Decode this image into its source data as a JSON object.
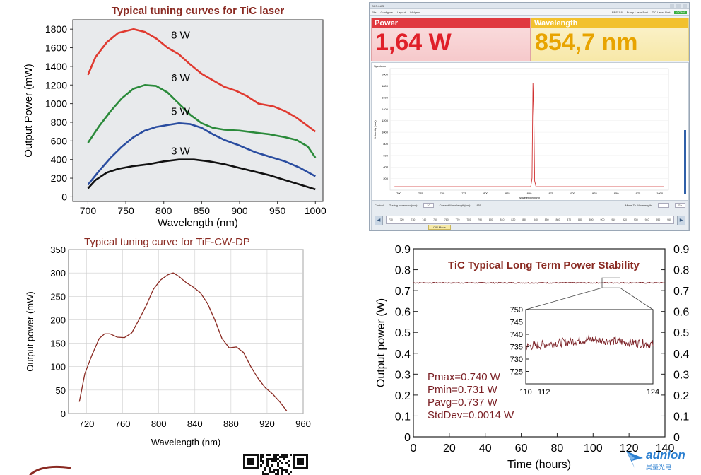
{
  "panel1": {
    "chart_data": {
      "type": "line",
      "title": "Typical tuning curves for TiC laser",
      "xlabel": "Wavelength (nm)",
      "ylabel": "Output Power (mW)",
      "xlim": [
        680,
        1010
      ],
      "ylim": [
        -50,
        1900
      ],
      "xticks": [
        700,
        750,
        800,
        850,
        900,
        950,
        1000
      ],
      "yticks": [
        0,
        200,
        400,
        600,
        800,
        1000,
        1200,
        1400,
        1600,
        1800
      ],
      "series": [
        {
          "name": "8 W",
          "color": "#e03a30",
          "label_at": [
            805,
            1700
          ],
          "x": [
            700,
            710,
            725,
            740,
            760,
            775,
            790,
            805,
            820,
            835,
            850,
            865,
            880,
            895,
            910,
            925,
            945,
            960,
            975,
            990,
            1000
          ],
          "y": [
            1310,
            1500,
            1660,
            1760,
            1800,
            1770,
            1700,
            1600,
            1530,
            1420,
            1320,
            1250,
            1180,
            1140,
            1080,
            1000,
            970,
            920,
            850,
            760,
            700
          ]
        },
        {
          "name": "6 W",
          "color": "#2a8a3a",
          "label_at": [
            805,
            1240
          ],
          "x": [
            700,
            715,
            730,
            745,
            760,
            775,
            790,
            805,
            820,
            835,
            850,
            865,
            880,
            900,
            920,
            940,
            960,
            975,
            990,
            1000
          ],
          "y": [
            580,
            760,
            920,
            1060,
            1160,
            1200,
            1190,
            1120,
            1000,
            880,
            790,
            740,
            720,
            710,
            690,
            670,
            640,
            610,
            540,
            420
          ]
        },
        {
          "name": "5 W",
          "color": "#2a4da0",
          "label_at": [
            805,
            880
          ],
          "x": [
            700,
            715,
            730,
            745,
            760,
            775,
            790,
            805,
            820,
            835,
            850,
            865,
            880,
            900,
            920,
            940,
            960,
            980,
            1000
          ],
          "y": [
            130,
            280,
            420,
            540,
            640,
            710,
            750,
            770,
            790,
            780,
            740,
            670,
            610,
            550,
            480,
            430,
            380,
            310,
            220
          ]
        },
        {
          "name": "3 W",
          "color": "#111111",
          "label_at": [
            805,
            455
          ],
          "x": [
            700,
            710,
            725,
            740,
            760,
            780,
            800,
            820,
            840,
            860,
            880,
            900,
            920,
            940,
            960,
            980,
            1000
          ],
          "y": [
            90,
            180,
            260,
            300,
            330,
            350,
            380,
            400,
            400,
            380,
            350,
            310,
            270,
            230,
            180,
            130,
            80
          ]
        }
      ]
    }
  },
  "panel2": {
    "app": {
      "title": "SCS-LAS",
      "menu": [
        "File",
        "Configure",
        "Layout",
        "Widgets"
      ],
      "status_labels": [
        "RPS 1.8",
        "Pump Laser Port",
        "TiC Laser Port"
      ],
      "status_ok": "COM4"
    },
    "power": {
      "label": "Power",
      "value": "1,64 W"
    },
    "wavelength": {
      "label": "Wavelength",
      "value": "854,7 nm"
    },
    "spectrum": {
      "chart_data": {
        "type": "line",
        "title": "Spectrum",
        "xlabel": "Wavelength (nm)",
        "ylabel": "Intensity (a.u.)",
        "xlim": [
          690,
          1010
        ],
        "ylim": [
          0,
          2100
        ],
        "xticks": [
          700,
          750,
          800,
          850,
          900,
          950,
          1000
        ],
        "xtick_labels_minor": [
          "700",
          "725",
          "750",
          "775",
          "800",
          "825",
          "850",
          "875",
          "900",
          "925",
          "950",
          "975",
          "1000"
        ],
        "yticks": [
          200,
          400,
          600,
          800,
          1000,
          1200,
          1400,
          1600,
          1800,
          2000
        ],
        "peak_wavelength": 854.7,
        "peak_intensity": 1850,
        "baseline": 60
      }
    },
    "control": {
      "header": "Control",
      "tuning_label": "Tuning Increment(nm):",
      "tuning_value": "10",
      "current_label": "Current Wavelength(nm):",
      "current_value": "855",
      "move_label": "Move To Wavelength:",
      "move_button": "Go",
      "scale": [
        "710",
        "720",
        "730",
        "740",
        "750",
        "760",
        "770",
        "780",
        "790",
        "800",
        "810",
        "820",
        "830",
        "840",
        "850",
        "860",
        "870",
        "880",
        "890",
        "900",
        "910",
        "920",
        "930",
        "940",
        "950",
        "960"
      ],
      "cw_button": "CW Mode"
    }
  },
  "panel3": {
    "chart_data": {
      "type": "line",
      "title": "Typical tuning curve for TiF-CW-DP",
      "xlabel": "Wavelength (nm)",
      "ylabel": "Output power (mW)",
      "xlim": [
        700,
        960
      ],
      "ylim": [
        0,
        350
      ],
      "xticks": [
        720,
        760,
        800,
        840,
        880,
        920,
        960
      ],
      "yticks": [
        0,
        50,
        100,
        150,
        200,
        250,
        300,
        350
      ],
      "series": [
        {
          "name": "TiF-CW-DP",
          "color": "#8a2a22",
          "x": [
            712,
            718,
            726,
            734,
            740,
            746,
            754,
            762,
            770,
            778,
            786,
            794,
            802,
            810,
            816,
            822,
            830,
            838,
            846,
            854,
            862,
            870,
            878,
            886,
            894,
            902,
            910,
            918,
            926,
            934,
            942
          ],
          "y": [
            25,
            85,
            125,
            160,
            170,
            170,
            163,
            162,
            172,
            200,
            230,
            265,
            285,
            296,
            300,
            293,
            280,
            270,
            258,
            235,
            200,
            160,
            140,
            142,
            130,
            100,
            75,
            55,
            42,
            25,
            5
          ]
        }
      ]
    }
  },
  "panel4": {
    "chart_data": {
      "type": "line",
      "title": "TiC Typical Long Term Power Stability",
      "xlabel": "Time (hours)",
      "ylabel": "Output power (W)",
      "xlim": [
        0,
        140
      ],
      "ylim": [
        0,
        0.9
      ],
      "xticks": [
        0,
        20,
        40,
        60,
        80,
        100,
        120,
        140
      ],
      "yticks": [
        0,
        0.1,
        0.2,
        0.3,
        0.4,
        0.5,
        0.6,
        0.7,
        0.8,
        0.9
      ],
      "yticks_right": [
        "0",
        "0.1",
        "0.2",
        "0.3",
        "0.4",
        "0.5",
        "0.6",
        "0.7",
        "0.8",
        "0.9"
      ],
      "mean_level": 0.737,
      "zoom_window_x": [
        105,
        115
      ],
      "inset": {
        "xlim": [
          110,
          124
        ],
        "ylim": [
          720,
          750
        ],
        "xticks": [
          110,
          112,
          124
        ],
        "yticks": [
          725,
          730,
          735,
          740,
          745,
          750
        ],
        "level_start": 735,
        "level_mid": 738,
        "level_end": 736
      },
      "stats": [
        "Pmax=0.740 W",
        "Pmin=0.731 W",
        "Pavg=0.737 W",
        "StdDev=0.0014 W"
      ]
    }
  },
  "branding": {
    "logo_name": "aunion",
    "logo_cn": "昊量光电"
  }
}
